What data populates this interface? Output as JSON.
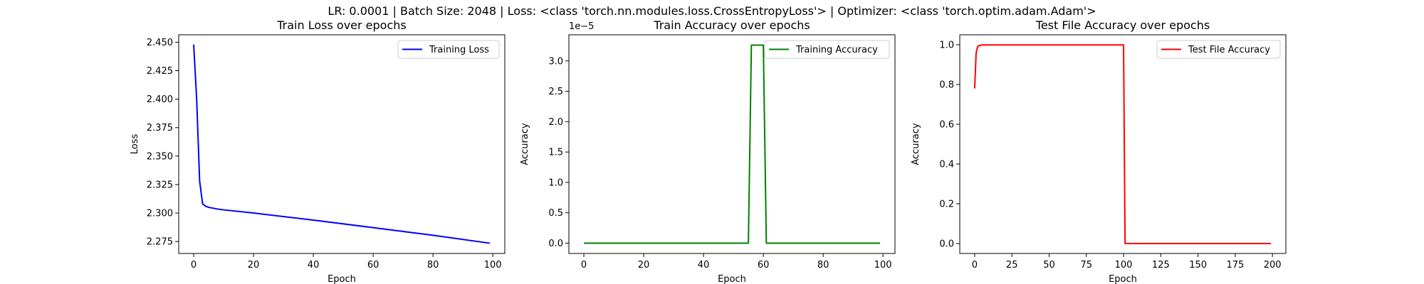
{
  "suptitle": "LR: 0.0001 | Batch Size: 2048 | Loss: <class 'torch.nn.modules.loss.CrossEntropyLoss'> | Optimizer: <class 'torch.optim.adam.Adam'>",
  "chart_data": [
    {
      "type": "line",
      "title": "Train Loss over epochs",
      "xlabel": "Epoch",
      "ylabel": "Loss",
      "xlim": [
        -5,
        104
      ],
      "ylim": [
        2.2645,
        2.4565
      ],
      "xticks": [
        0,
        20,
        40,
        60,
        80,
        100
      ],
      "yticks": [
        2.275,
        2.3,
        2.325,
        2.35,
        2.375,
        2.4,
        2.425,
        2.45
      ],
      "ytick_labels": [
        "2.275",
        "2.300",
        "2.325",
        "2.350",
        "2.375",
        "2.400",
        "2.425",
        "2.450"
      ],
      "offset_text": "",
      "grid": false,
      "legend": "upper right",
      "series": [
        {
          "name": "Training Loss",
          "color": "#0000ff",
          "x": [
            0,
            1,
            2,
            3,
            4,
            5,
            6,
            8,
            10,
            20,
            40,
            60,
            80,
            99
          ],
          "y": [
            2.448,
            2.4,
            2.328,
            2.308,
            2.306,
            2.305,
            2.3045,
            2.3035,
            2.3028,
            2.3,
            2.2938,
            2.2872,
            2.2805,
            2.2735
          ]
        }
      ]
    },
    {
      "type": "line",
      "title": "Train Accuracy over epochs",
      "xlabel": "Epoch",
      "ylabel": "Accuracy",
      "xlim": [
        -5,
        104
      ],
      "ylim": [
        -1.7e-06,
        3.43e-05
      ],
      "xticks": [
        0,
        20,
        40,
        60,
        80,
        100
      ],
      "yticks": [
        0,
        5e-06,
        1e-05,
        1.5e-05,
        2e-05,
        2.5e-05,
        3e-05
      ],
      "ytick_labels": [
        "0.0",
        "0.5",
        "1.0",
        "1.5",
        "2.0",
        "2.5",
        "3.0"
      ],
      "offset_text": "1e−5",
      "grid": false,
      "legend": "upper right",
      "series": [
        {
          "name": "Training Accuracy",
          "color": "#008000",
          "x": [
            0,
            55,
            56,
            60,
            61,
            99
          ],
          "y": [
            0,
            0,
            3.26e-05,
            3.26e-05,
            0,
            0
          ]
        }
      ]
    },
    {
      "type": "line",
      "title": "Test File Accuracy over epochs",
      "xlabel": "Epoch",
      "ylabel": "Accuracy",
      "xlim": [
        -10,
        209
      ],
      "ylim": [
        -0.05,
        1.05
      ],
      "xticks": [
        0,
        25,
        50,
        75,
        100,
        125,
        150,
        175,
        200
      ],
      "yticks": [
        0,
        0.2,
        0.4,
        0.6,
        0.8,
        1.0
      ],
      "ytick_labels": [
        "0.0",
        "0.2",
        "0.4",
        "0.6",
        "0.8",
        "1.0"
      ],
      "offset_text": "",
      "grid": false,
      "legend": "upper right",
      "series": [
        {
          "name": "Test File Accuracy",
          "color": "#ff0000",
          "x": [
            0,
            1,
            2,
            3,
            5,
            99,
            100,
            101,
            199
          ],
          "y": [
            0.78,
            0.96,
            0.99,
            0.996,
            0.999,
            0.999,
            0.999,
            0.0,
            0.0
          ]
        }
      ]
    }
  ]
}
